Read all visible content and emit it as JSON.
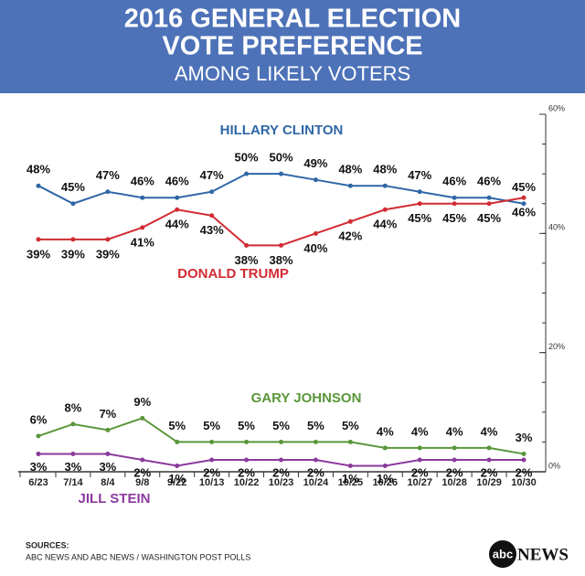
{
  "chart_data": {
    "type": "line",
    "title": [
      "2016 GENERAL ELECTION",
      "VOTE PREFERENCE"
    ],
    "subtitle": "AMONG LIKELY VOTERS",
    "categories": [
      "6/23",
      "7/14",
      "8/4",
      "9/8",
      "9/22",
      "10/13",
      "10/22",
      "10/23",
      "10/24",
      "10/25",
      "10/26",
      "10/27",
      "10/28",
      "10/29",
      "10/30"
    ],
    "ylim": [
      0,
      60
    ],
    "yticks": [
      {
        "value": 0,
        "label": "0%"
      },
      {
        "value": 20,
        "label": "20%"
      },
      {
        "value": 40,
        "label": "40%"
      },
      {
        "value": 60,
        "label": "60%"
      }
    ],
    "grid": false,
    "series": [
      {
        "name": "HILLARY CLINTON",
        "color": "#2f67a6",
        "values": [
          48,
          45,
          47,
          46,
          46,
          47,
          50,
          50,
          49,
          48,
          48,
          47,
          46,
          46,
          45
        ],
        "value_labels": [
          "48%",
          "45%",
          "47%",
          "46%",
          "46%",
          "47%",
          "50%",
          "50%",
          "49%",
          "48%",
          "48%",
          "47%",
          "46%",
          "46%",
          "45%"
        ]
      },
      {
        "name": "DONALD TRUMP",
        "color": "#d12c33",
        "values": [
          39,
          39,
          39,
          41,
          44,
          43,
          38,
          38,
          40,
          42,
          44,
          45,
          45,
          45,
          46
        ],
        "value_labels": [
          "39%",
          "39%",
          "39%",
          "41%",
          "44%",
          "43%",
          "38%",
          "38%",
          "40%",
          "42%",
          "44%",
          "45%",
          "45%",
          "45%",
          "46%"
        ]
      },
      {
        "name": "GARY JOHNSON",
        "color": "#5a963a",
        "values": [
          6,
          8,
          7,
          9,
          5,
          5,
          5,
          5,
          5,
          5,
          4,
          4,
          4,
          4,
          3
        ],
        "value_labels": [
          "6%",
          "8%",
          "7%",
          "9%",
          "5%",
          "5%",
          "5%",
          "5%",
          "5%",
          "5%",
          "4%",
          "4%",
          "4%",
          "4%",
          "3%"
        ]
      },
      {
        "name": "JILL STEIN",
        "color": "#8b3a9c",
        "values": [
          3,
          3,
          3,
          2,
          1,
          2,
          2,
          2,
          2,
          1,
          1,
          2,
          2,
          2,
          2
        ],
        "value_labels": [
          "3%",
          "3%",
          "3%",
          "2%",
          "1%",
          "2%",
          "2%",
          "2%",
          "2%",
          "1%",
          "1%",
          "2%",
          "2%",
          "2%",
          "2%"
        ]
      }
    ]
  },
  "footer": {
    "sources_label": "SOURCES:",
    "sources": "ABC NEWS AND ABC NEWS / WASHINGTON POST POLLS",
    "logo_abc": "abc",
    "logo_news": "NEWS"
  }
}
